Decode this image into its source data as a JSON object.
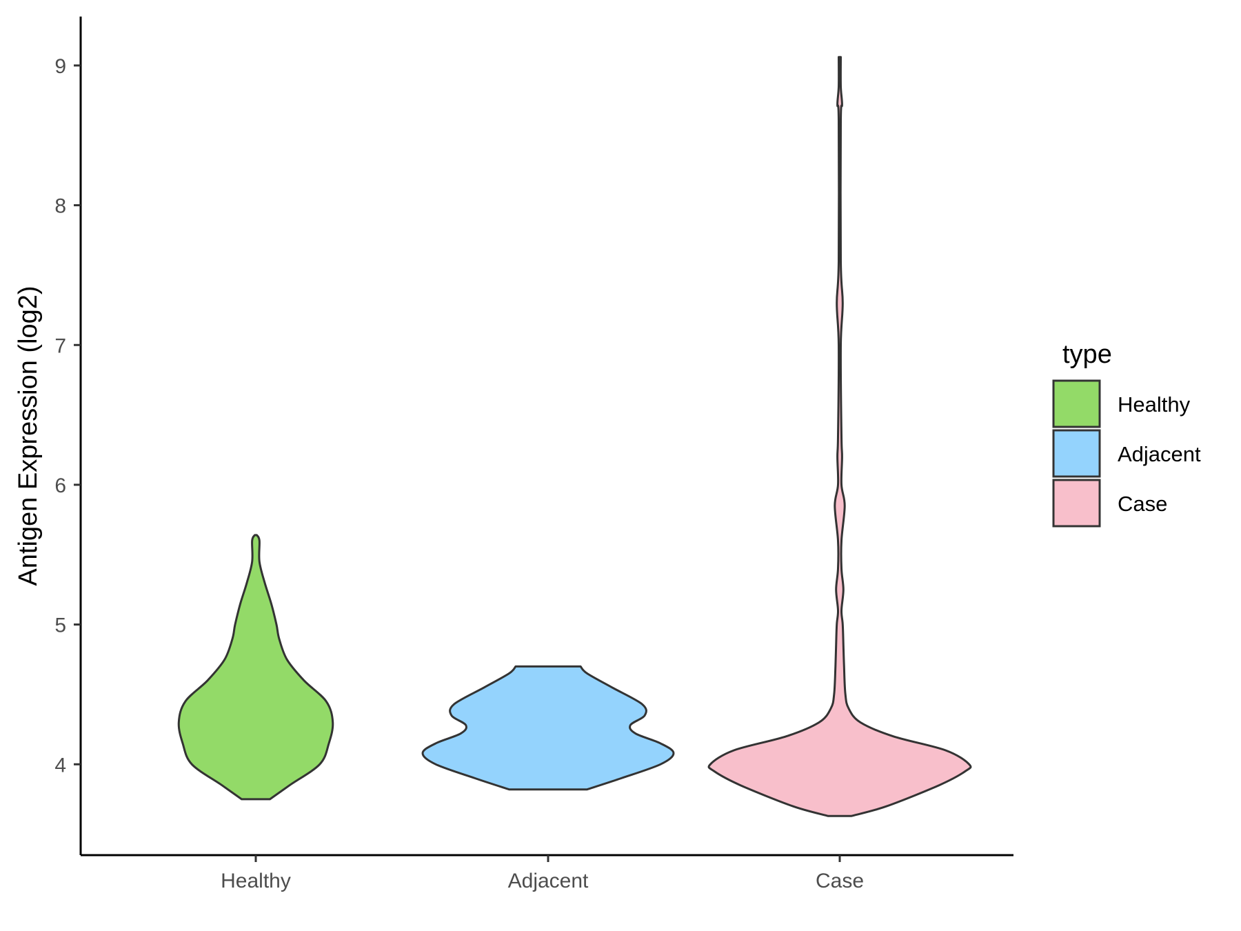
{
  "chart_data": {
    "type": "violin",
    "ylabel": "Antigen Expression (log2)",
    "xlabel": "",
    "title": "",
    "categories": [
      "Healthy",
      "Adjacent",
      "Case"
    ],
    "y_ticks": [
      4,
      5,
      6,
      7,
      8,
      9
    ],
    "ylim": [
      3.35,
      9.35
    ],
    "grid": false,
    "legend": {
      "title": "type",
      "position": "right",
      "entries": [
        {
          "label": "Healthy",
          "color": "#93DA68"
        },
        {
          "label": "Adjacent",
          "color": "#94D3FD"
        },
        {
          "label": "Case",
          "color": "#F8BFCB"
        }
      ]
    },
    "series": [
      {
        "category": "Healthy",
        "color": "#93DA68",
        "profile": [
          [
            3.75,
            0.1
          ],
          [
            3.85,
            0.25
          ],
          [
            4.0,
            0.48
          ],
          [
            4.15,
            0.55
          ],
          [
            4.3,
            0.58
          ],
          [
            4.45,
            0.53
          ],
          [
            4.6,
            0.36
          ],
          [
            4.75,
            0.23
          ],
          [
            4.9,
            0.17
          ],
          [
            5.0,
            0.15
          ],
          [
            5.15,
            0.11
          ],
          [
            5.3,
            0.06
          ],
          [
            5.45,
            0.02
          ],
          [
            5.6,
            0.02
          ],
          [
            5.64,
            0.0
          ]
        ]
      },
      {
        "category": "Adjacent",
        "color": "#94D3FD",
        "profile": [
          [
            3.82,
            0.29
          ],
          [
            3.9,
            0.55
          ],
          [
            4.0,
            0.85
          ],
          [
            4.08,
            0.95
          ],
          [
            4.15,
            0.85
          ],
          [
            4.22,
            0.66
          ],
          [
            4.28,
            0.62
          ],
          [
            4.35,
            0.73
          ],
          [
            4.43,
            0.71
          ],
          [
            4.55,
            0.48
          ],
          [
            4.65,
            0.29
          ],
          [
            4.7,
            0.24
          ]
        ]
      },
      {
        "category": "Case",
        "color": "#F8BFCB",
        "profile": [
          [
            3.63,
            0.08
          ],
          [
            3.7,
            0.35
          ],
          [
            3.85,
            0.75
          ],
          [
            3.95,
            0.95
          ],
          [
            4.0,
            0.98
          ],
          [
            4.1,
            0.8
          ],
          [
            4.2,
            0.4
          ],
          [
            4.3,
            0.15
          ],
          [
            4.4,
            0.06
          ],
          [
            4.5,
            0.035
          ],
          [
            4.7,
            0.025
          ],
          [
            4.85,
            0.02
          ],
          [
            5.0,
            0.015
          ],
          [
            5.1,
            0.005
          ],
          [
            5.25,
            0.02
          ],
          [
            5.4,
            0.005
          ],
          [
            5.6,
            0.005
          ],
          [
            5.85,
            0.03
          ],
          [
            6.0,
            0.005
          ],
          [
            6.2,
            0.01
          ],
          [
            6.35,
            0.005
          ],
          [
            7.0,
            0.0
          ],
          [
            7.3,
            0.015
          ],
          [
            7.6,
            0.0
          ],
          [
            8.6,
            0.0
          ],
          [
            8.72,
            0.01
          ],
          [
            8.85,
            0.0
          ],
          [
            9.06,
            0.0
          ]
        ]
      }
    ]
  }
}
